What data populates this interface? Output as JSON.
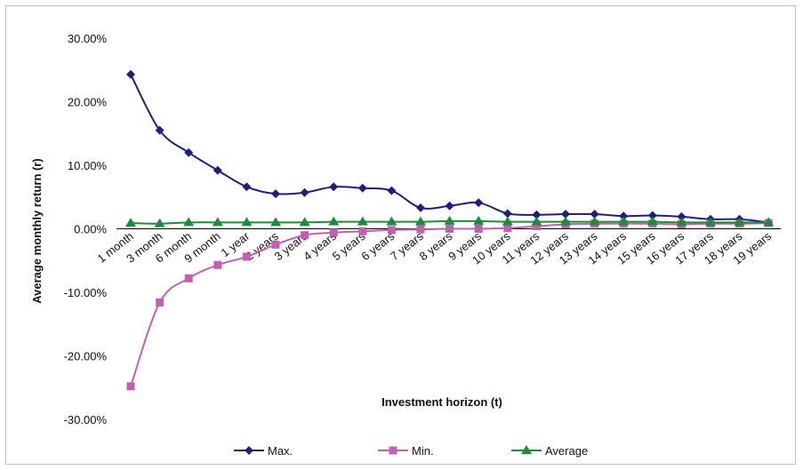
{
  "chart_data": {
    "type": "line",
    "title": "",
    "xlabel": "Investment horizon (t)",
    "ylabel": "Average monthly return (r)",
    "ylim": [
      -30,
      30
    ],
    "yticks": [
      "30.00%",
      "20.00%",
      "10.00%",
      "0.00%",
      "-10.00%",
      "-20.00%",
      "-30.00%"
    ],
    "categories": [
      "1 month",
      "3 month",
      "6 month",
      "9 month",
      "1 year",
      "2 years",
      "3 years",
      "4 years",
      "5 years",
      "6 years",
      "7 years",
      "8 years",
      "9 years",
      "10 years",
      "11 years",
      "12 years",
      "13 years",
      "14 years",
      "15 years",
      "16 years",
      "17 years",
      "18 years",
      "19 years"
    ],
    "legend_position": "bottom",
    "grid": false,
    "series": [
      {
        "name": "Max.",
        "color": "#1f1f7a",
        "marker": "diamond",
        "values": [
          24.3,
          15.5,
          12.0,
          9.2,
          6.6,
          5.5,
          5.7,
          6.6,
          6.4,
          6.0,
          3.3,
          3.6,
          4.1,
          2.4,
          2.2,
          2.3,
          2.3,
          2.0,
          2.1,
          1.9,
          1.5,
          1.5,
          1.0
        ]
      },
      {
        "name": "Min.",
        "color": "#c060b0",
        "marker": "square",
        "values": [
          -24.8,
          -11.6,
          -7.8,
          -5.7,
          -4.4,
          -2.5,
          -1.0,
          -0.6,
          -0.4,
          -0.2,
          -0.1,
          0.0,
          0.0,
          0.1,
          0.4,
          0.7,
          0.8,
          0.8,
          0.8,
          0.7,
          0.8,
          0.8,
          0.9
        ]
      },
      {
        "name": "Average",
        "color": "#1f8a3c",
        "marker": "triangle",
        "values": [
          0.9,
          0.8,
          1.0,
          1.0,
          1.0,
          1.0,
          1.0,
          1.1,
          1.1,
          1.1,
          1.1,
          1.2,
          1.2,
          1.1,
          1.1,
          1.1,
          1.1,
          1.1,
          1.1,
          1.0,
          1.0,
          1.0,
          1.0
        ]
      }
    ]
  }
}
